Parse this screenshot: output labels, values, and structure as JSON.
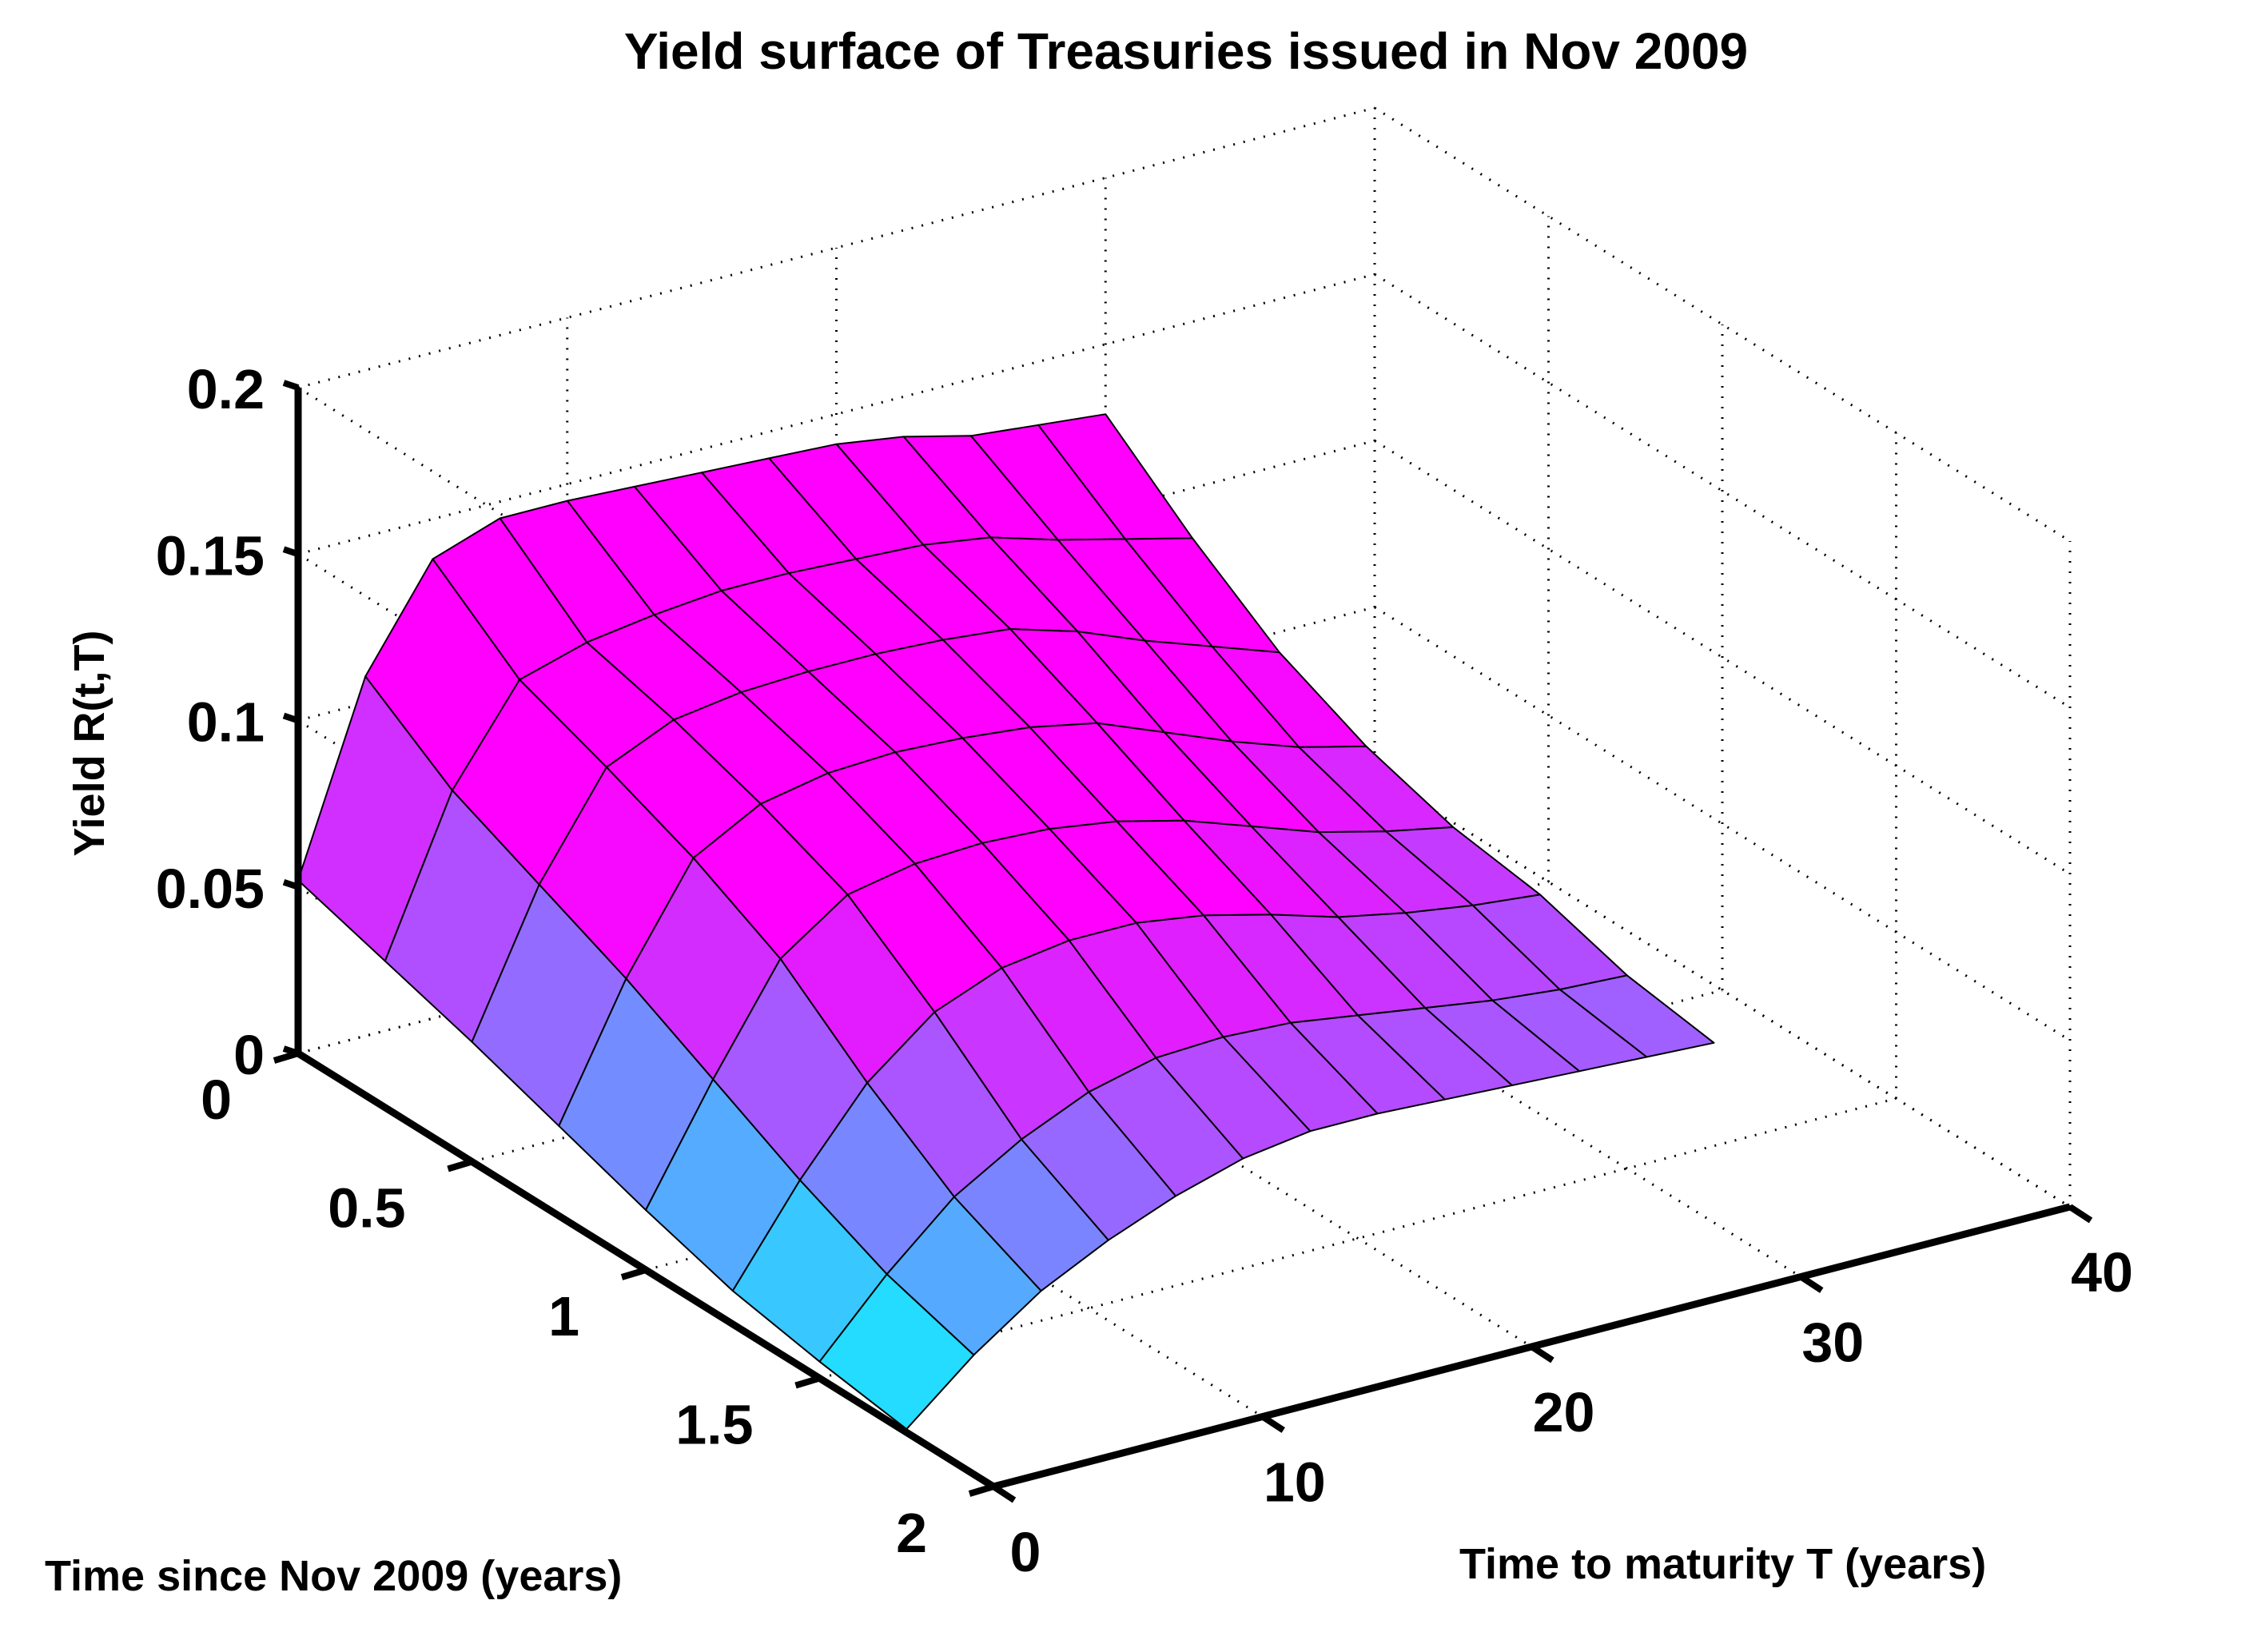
{
  "chart_data": {
    "type": "surface",
    "title": "Yield surface of Treasuries issued in Nov 2009",
    "xlabel": "Time since Nov 2009 (years)",
    "ylabel": "Time to maturity T (years)",
    "zlabel": "Yield R(t,T)",
    "xlim": [
      0,
      2
    ],
    "ylim": [
      0,
      40
    ],
    "zlim": [
      0,
      0.2
    ],
    "x_ticks": [
      "0",
      "0.5",
      "1",
      "1.5",
      "2"
    ],
    "y_ticks": [
      "0",
      "10",
      "20",
      "30",
      "40"
    ],
    "z_ticks": [
      "0",
      "0.05",
      "0.1",
      "0.15",
      "0.2"
    ],
    "t": [
      0,
      0.25,
      0.5,
      0.75,
      1.0,
      1.25,
      1.5,
      1.75
    ],
    "T": [
      0,
      2.5,
      5,
      7.5,
      10,
      12.5,
      15,
      17.5,
      20,
      22.5,
      25,
      27.5,
      30
    ],
    "z": [
      [
        0.052,
        0.108,
        0.138,
        0.145,
        0.145,
        0.144,
        0.143,
        0.142,
        0.141,
        0.138,
        0.133,
        0.131,
        0.129
      ],
      [
        0.044,
        0.09,
        0.118,
        0.124,
        0.127,
        0.129,
        0.129,
        0.128,
        0.127,
        0.124,
        0.118,
        0.113,
        0.108
      ],
      [
        0.036,
        0.078,
        0.108,
        0.117,
        0.12,
        0.121,
        0.121,
        0.12,
        0.118,
        0.112,
        0.104,
        0.097,
        0.09
      ],
      [
        0.027,
        0.066,
        0.097,
        0.108,
        0.112,
        0.113,
        0.112,
        0.11,
        0.106,
        0.098,
        0.09,
        0.083,
        0.078
      ],
      [
        0.018,
        0.052,
        0.083,
        0.097,
        0.101,
        0.102,
        0.101,
        0.098,
        0.093,
        0.086,
        0.079,
        0.074,
        0.07
      ],
      [
        0.01,
        0.038,
        0.062,
        0.078,
        0.086,
        0.089,
        0.089,
        0.086,
        0.081,
        0.075,
        0.071,
        0.068,
        0.066
      ],
      [
        0.005,
        0.026,
        0.044,
        0.056,
        0.065,
        0.07,
        0.071,
        0.07,
        0.067,
        0.064,
        0.061,
        0.059,
        0.058
      ],
      [
        0.001,
        0.018,
        0.032,
        0.042,
        0.05,
        0.056,
        0.059,
        0.059,
        0.058,
        0.057,
        0.056,
        0.055,
        0.054
      ]
    ],
    "colormap": "cool",
    "grid": true
  }
}
